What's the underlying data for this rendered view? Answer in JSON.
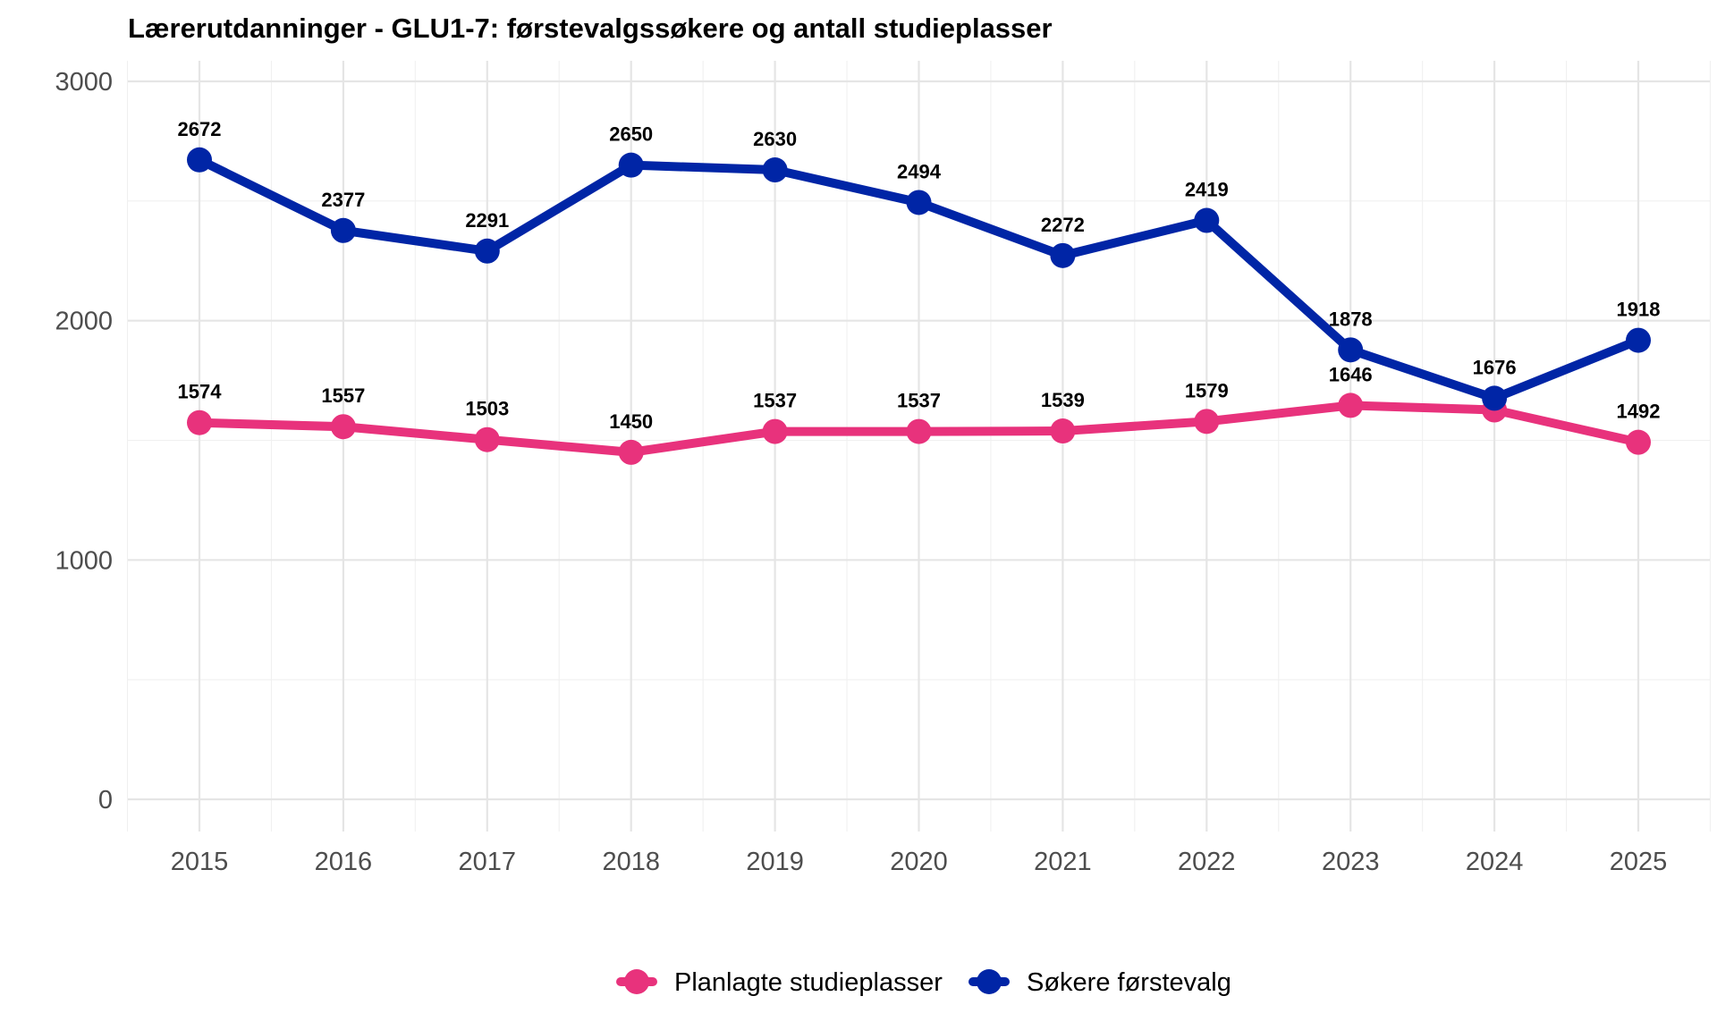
{
  "chart_data": {
    "type": "line",
    "title": "Lærerutdanninger - GLU1-7: førstevalgssøkere og antall studieplasser",
    "xlabel": "",
    "ylabel": "",
    "x": [
      "2015",
      "2016",
      "2017",
      "2018",
      "2019",
      "2020",
      "2021",
      "2022",
      "2023",
      "2024",
      "2025"
    ],
    "ylim": [
      0,
      3000
    ],
    "y_ticks": [
      "0",
      "1000",
      "2000",
      "3000"
    ],
    "grid": true,
    "legend_position": "bottom",
    "series": [
      {
        "name": "Søkere førstevalg",
        "color": "#0025a6",
        "values": [
          2672,
          2377,
          2291,
          2650,
          2630,
          2494,
          2272,
          2419,
          1878,
          1676,
          1918
        ],
        "labels": [
          "2672",
          "2377",
          "2291",
          "2650",
          "2630",
          "2494",
          "2272",
          "2419",
          "1878",
          "1676",
          "1918"
        ]
      },
      {
        "name": "Planlagte studieplasser",
        "color": "#e8327c",
        "values": [
          1574,
          1557,
          1503,
          1450,
          1537,
          1537,
          1539,
          1579,
          1646,
          1627,
          1492
        ],
        "labels": [
          "1574",
          "1557",
          "1503",
          "1450",
          "1537",
          "1537",
          "1539",
          "1579",
          "1646",
          "",
          "1492"
        ]
      }
    ],
    "legend": [
      "Planlagte studieplasser",
      "Søkere førstevalg"
    ]
  }
}
